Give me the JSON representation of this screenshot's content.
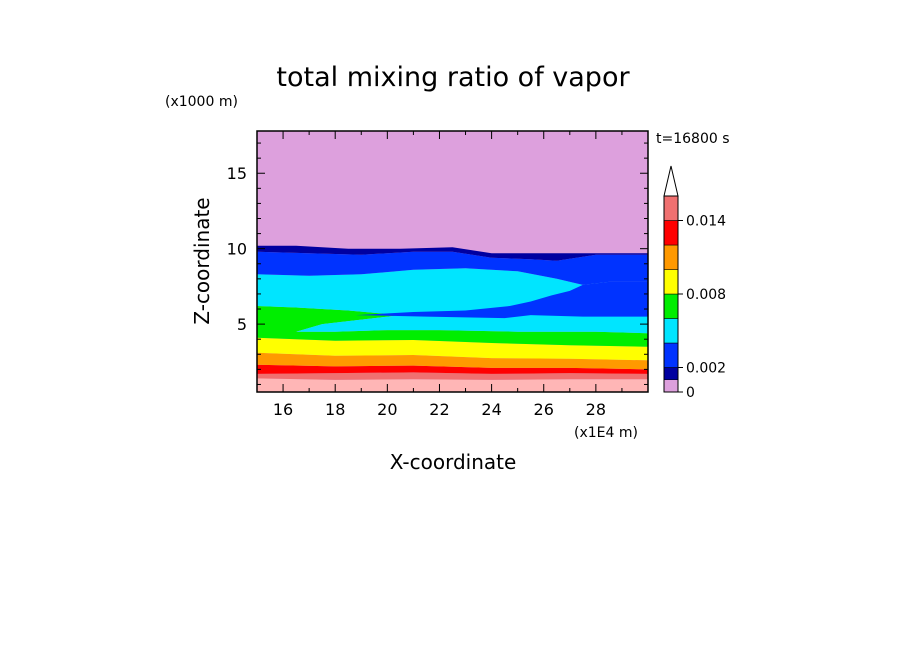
{
  "chart_data": {
    "type": "heatmap",
    "title": "total mixing ratio of vapor",
    "xlabel": "X-coordinate",
    "ylabel": "Z-coordinate",
    "x_unit": "(x1E4 m)",
    "y_unit": "(x1000 m)",
    "time_label": "t=16800 s",
    "xlim": [
      15,
      30
    ],
    "ylim": [
      0.5,
      17.8
    ],
    "x_ticks": [
      16,
      18,
      20,
      22,
      24,
      26,
      28
    ],
    "y_ticks": [
      5,
      10,
      15
    ],
    "colorbar": {
      "levels": [
        0,
        0.001,
        0.002,
        0.004,
        0.006,
        0.008,
        0.01,
        0.012,
        0.014,
        0.016
      ],
      "colors": [
        "#dda0dd",
        "#0000a0",
        "#0033ff",
        "#00e5ff",
        "#00ee00",
        "#ffff00",
        "#ff9900",
        "#ff0000",
        "#f07070",
        "#ffb6b6"
      ],
      "tick_labels": [
        "0",
        "0.002",
        "0.008",
        "0.014"
      ],
      "tick_values": [
        0,
        0.002,
        0.008,
        0.014
      ],
      "extend": "max"
    },
    "bands": [
      {
        "name": "band-pink",
        "color": "#ffb6b6",
        "top": [
          [
            15,
            1.4
          ],
          [
            18,
            1.3
          ],
          [
            21,
            1.35
          ],
          [
            24,
            1.3
          ],
          [
            27,
            1.35
          ],
          [
            30,
            1.35
          ]
        ],
        "bottom": [
          [
            15,
            0.5
          ],
          [
            30,
            0.5
          ]
        ]
      },
      {
        "name": "band-lightred",
        "color": "#f07070",
        "top": [
          [
            15,
            1.7
          ],
          [
            18,
            1.75
          ],
          [
            21,
            1.8
          ],
          [
            24,
            1.7
          ],
          [
            27,
            1.75
          ],
          [
            30,
            1.7
          ]
        ],
        "bottom": [
          [
            15,
            1.4
          ],
          [
            18,
            1.3
          ],
          [
            21,
            1.35
          ],
          [
            24,
            1.3
          ],
          [
            27,
            1.35
          ],
          [
            30,
            1.35
          ]
        ]
      },
      {
        "name": "band-red",
        "color": "#ff0000",
        "top": [
          [
            15,
            2.3
          ],
          [
            18,
            2.2
          ],
          [
            21,
            2.25
          ],
          [
            24,
            2.1
          ],
          [
            27,
            2.1
          ],
          [
            30,
            2.0
          ]
        ],
        "bottom": [
          [
            15,
            1.7
          ],
          [
            18,
            1.75
          ],
          [
            21,
            1.8
          ],
          [
            24,
            1.7
          ],
          [
            27,
            1.75
          ],
          [
            30,
            1.7
          ]
        ]
      },
      {
        "name": "band-orange",
        "color": "#ff9900",
        "top": [
          [
            15,
            3.1
          ],
          [
            18,
            2.9
          ],
          [
            21,
            2.95
          ],
          [
            24,
            2.75
          ],
          [
            27,
            2.7
          ],
          [
            30,
            2.6
          ]
        ],
        "bottom": [
          [
            15,
            2.3
          ],
          [
            18,
            2.2
          ],
          [
            21,
            2.25
          ],
          [
            24,
            2.1
          ],
          [
            27,
            2.1
          ],
          [
            30,
            2.0
          ]
        ]
      },
      {
        "name": "band-yellow",
        "color": "#ffff00",
        "top": [
          [
            15,
            4.1
          ],
          [
            18,
            3.9
          ],
          [
            21,
            3.95
          ],
          [
            24,
            3.75
          ],
          [
            27,
            3.6
          ],
          [
            30,
            3.5
          ]
        ],
        "bottom": [
          [
            15,
            3.1
          ],
          [
            18,
            2.9
          ],
          [
            21,
            2.95
          ],
          [
            24,
            2.75
          ],
          [
            27,
            2.7
          ],
          [
            30,
            2.6
          ]
        ]
      },
      {
        "name": "band-green",
        "color": "#00ee00",
        "top": [
          [
            15,
            6.2
          ],
          [
            16.5,
            6.1
          ],
          [
            18.5,
            5.9
          ],
          [
            20.5,
            5.6
          ],
          [
            19,
            5.3
          ],
          [
            17.5,
            5.0
          ],
          [
            16.5,
            4.5
          ],
          [
            18,
            4.5
          ],
          [
            20,
            4.6
          ],
          [
            22,
            4.6
          ],
          [
            25,
            4.5
          ],
          [
            28,
            4.5
          ],
          [
            30,
            4.4
          ]
        ],
        "bottom": [
          [
            15,
            4.1
          ],
          [
            18,
            3.9
          ],
          [
            21,
            3.95
          ],
          [
            24,
            3.75
          ],
          [
            27,
            3.6
          ],
          [
            30,
            3.5
          ]
        ]
      },
      {
        "name": "band-cyan",
        "color": "#00e5ff",
        "top": [
          [
            15,
            8.3
          ],
          [
            17,
            8.2
          ],
          [
            19,
            8.3
          ],
          [
            21,
            8.6
          ],
          [
            23,
            8.7
          ],
          [
            25,
            8.5
          ],
          [
            26.5,
            8.0
          ],
          [
            27.5,
            7.6
          ],
          [
            28.5,
            7.8
          ],
          [
            30,
            7.8
          ]
        ],
        "bottom": [
          [
            15,
            6.2
          ],
          [
            16.5,
            6.1
          ],
          [
            18.5,
            5.9
          ],
          [
            20.5,
            5.6
          ],
          [
            19,
            5.3
          ],
          [
            17.5,
            5.0
          ],
          [
            16.5,
            4.5
          ],
          [
            18,
            4.5
          ],
          [
            20,
            4.6
          ],
          [
            22,
            4.6
          ],
          [
            25,
            4.5
          ],
          [
            28,
            4.5
          ],
          [
            30,
            4.4
          ]
        ]
      },
      {
        "name": "band-blue",
        "color": "#0033ff",
        "top": [
          [
            15,
            9.8
          ],
          [
            17,
            9.7
          ],
          [
            19,
            9.6
          ],
          [
            21,
            9.8
          ],
          [
            22.5,
            9.8
          ],
          [
            24,
            9.4
          ],
          [
            25.5,
            9.3
          ],
          [
            26.5,
            9.2
          ],
          [
            28,
            9.6
          ],
          [
            30,
            9.6
          ]
        ],
        "bottom": [
          [
            15,
            8.3
          ],
          [
            17,
            8.2
          ],
          [
            19,
            8.3
          ],
          [
            21,
            8.6
          ],
          [
            23,
            8.7
          ],
          [
            25,
            8.5
          ],
          [
            26.5,
            8.0
          ],
          [
            27.5,
            7.6
          ],
          [
            28.5,
            7.8
          ],
          [
            30,
            7.8
          ]
        ]
      },
      {
        "name": "band-navy",
        "color": "#0000a0",
        "top": [
          [
            15,
            10.2
          ],
          [
            16.5,
            10.2
          ],
          [
            18.5,
            10.0
          ],
          [
            20.5,
            10.0
          ],
          [
            22.5,
            10.1
          ],
          [
            24,
            9.7
          ],
          [
            30,
            9.7
          ]
        ],
        "bottom": [
          [
            15,
            9.8
          ],
          [
            17,
            9.7
          ],
          [
            19,
            9.6
          ],
          [
            21,
            9.8
          ],
          [
            22.5,
            9.8
          ],
          [
            24,
            9.4
          ],
          [
            25.5,
            9.3
          ],
          [
            26.5,
            9.2
          ],
          [
            28,
            9.6
          ],
          [
            30,
            9.6
          ]
        ]
      }
    ],
    "holes": [
      {
        "name": "cyan-tongue",
        "color": "#00e5ff",
        "points": [
          [
            24.7,
            6.4
          ],
          [
            25.5,
            6.7
          ],
          [
            26.3,
            7.1
          ],
          [
            27.0,
            7.4
          ],
          [
            27.5,
            7.3
          ],
          [
            27.2,
            6.9
          ],
          [
            26.6,
            6.8
          ],
          [
            26.0,
            6.5
          ],
          [
            25.3,
            6.3
          ]
        ]
      },
      {
        "name": "blue-pocket",
        "color": "#0033ff",
        "points": [
          [
            18.8,
            5.6
          ],
          [
            21.5,
            5.5
          ],
          [
            24.5,
            5.4
          ],
          [
            25.5,
            5.6
          ],
          [
            27.5,
            5.5
          ],
          [
            30,
            5.5
          ],
          [
            30,
            7.8
          ],
          [
            28.5,
            7.8
          ],
          [
            27.5,
            7.6
          ],
          [
            27.0,
            7.2
          ],
          [
            26.3,
            6.9
          ],
          [
            25.5,
            6.5
          ],
          [
            24.7,
            6.2
          ],
          [
            23,
            5.9
          ],
          [
            21,
            5.8
          ]
        ]
      }
    ]
  }
}
